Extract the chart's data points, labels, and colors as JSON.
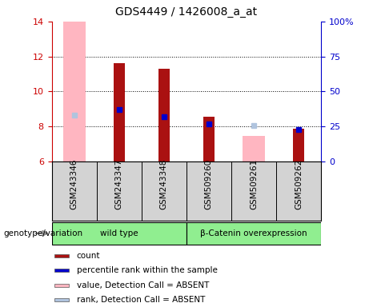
{
  "title": "GDS4449 / 1426008_a_at",
  "categories": [
    "GSM243346",
    "GSM243347",
    "GSM243348",
    "GSM509260",
    "GSM509261",
    "GSM509262"
  ],
  "groups": [
    {
      "label": "wild type",
      "indices": [
        0,
        1,
        2
      ]
    },
    {
      "label": "β-Catenin overexpression",
      "indices": [
        3,
        4,
        5
      ]
    }
  ],
  "count_values": [
    null,
    11.6,
    11.3,
    8.55,
    null,
    7.85
  ],
  "count_color": "#aa1111",
  "absent_value_values": [
    14.0,
    null,
    null,
    null,
    7.45,
    null
  ],
  "absent_value_color": "#ffb6c1",
  "percentile_values": [
    null,
    8.95,
    8.55,
    8.15,
    null,
    7.8
  ],
  "percentile_color": "#0000cc",
  "absent_rank_values": [
    8.65,
    null,
    null,
    null,
    8.05,
    null
  ],
  "absent_rank_color": "#b0c4de",
  "ylim": [
    6,
    14
  ],
  "y_ticks": [
    6,
    8,
    10,
    12,
    14
  ],
  "right_ylim": [
    0,
    100
  ],
  "right_y_ticks": [
    0,
    25,
    50,
    75,
    100
  ],
  "right_tick_labels": [
    "0",
    "25",
    "50",
    "75",
    "100%"
  ],
  "absent_bar_width": 0.5,
  "count_bar_width": 0.25,
  "plot_bg": "#ffffff",
  "legend_items": [
    {
      "label": "count",
      "color": "#aa1111"
    },
    {
      "label": "percentile rank within the sample",
      "color": "#0000cc"
    },
    {
      "label": "value, Detection Call = ABSENT",
      "color": "#ffb6c1"
    },
    {
      "label": "rank, Detection Call = ABSENT",
      "color": "#b0c4de"
    }
  ],
  "xlabel_bottom": "genotype/variation",
  "group_box_color": "#d3d3d3",
  "group_label_color": "#90ee90",
  "left_axis_color": "#cc0000",
  "right_axis_color": "#0000cc",
  "title_fontsize": 10,
  "tick_fontsize": 8,
  "label_fontsize": 8
}
